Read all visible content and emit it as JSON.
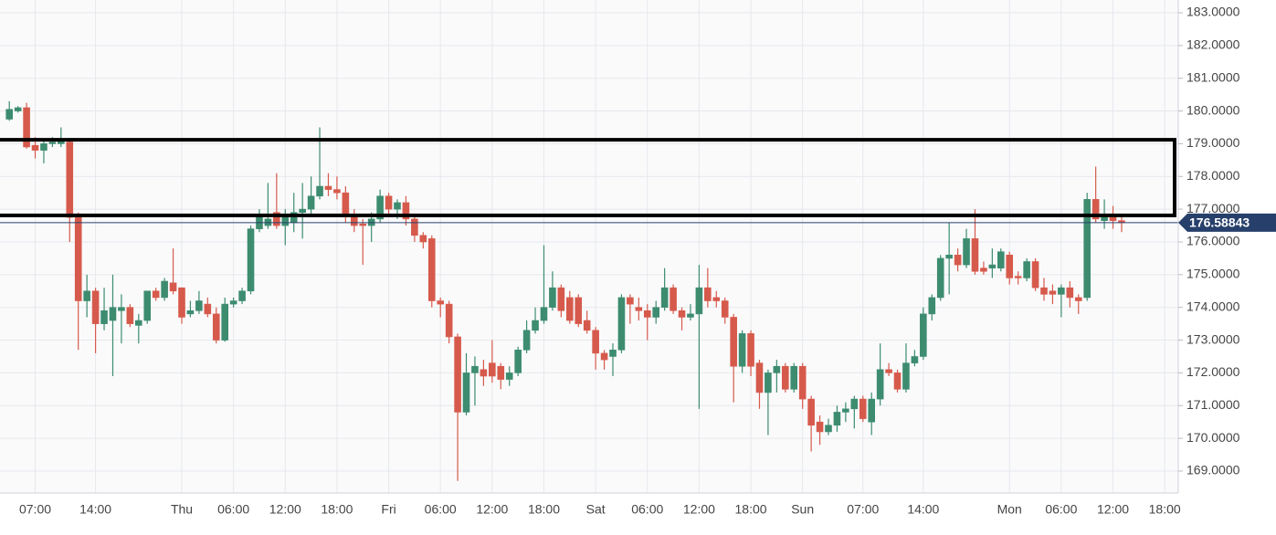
{
  "chart_data": {
    "type": "candlestick",
    "categories": [
      null,
      null,
      null,
      "07:00",
      null,
      null,
      null,
      null,
      null,
      null,
      "14:00",
      null,
      null,
      null,
      null,
      null,
      null,
      null,
      null,
      null,
      "Thu",
      null,
      null,
      null,
      null,
      null,
      "06:00",
      null,
      null,
      null,
      null,
      null,
      "12:00",
      null,
      null,
      null,
      null,
      null,
      "18:00",
      null,
      null,
      null,
      null,
      null,
      "Fri",
      null,
      null,
      null,
      null,
      null,
      "06:00",
      null,
      null,
      null,
      null,
      null,
      "12:00",
      null,
      null,
      null,
      null,
      null,
      "18:00",
      null,
      null,
      null,
      null,
      null,
      "Sat",
      null,
      null,
      null,
      null,
      null,
      "06:00",
      null,
      null,
      null,
      null,
      null,
      "12:00",
      null,
      null,
      null,
      null,
      null,
      "18:00",
      null,
      null,
      null,
      null,
      null,
      "Sun",
      null,
      null,
      null,
      null,
      null,
      null,
      "07:00",
      null,
      null,
      null,
      null,
      null,
      null,
      "14:00",
      null,
      null,
      null,
      null,
      null,
      null,
      null,
      null,
      null,
      "Mon",
      null,
      null,
      null,
      null,
      null,
      "06:00",
      null,
      null,
      null,
      null,
      null,
      "12:00",
      null,
      null,
      null,
      null,
      null,
      "18:00"
    ],
    "open": [
      179.75,
      180.0,
      180.1,
      178.95,
      178.8,
      179.0,
      179.0,
      179.05,
      176.75,
      174.2,
      174.5,
      173.5,
      173.6,
      173.9,
      174.0,
      173.45,
      173.6,
      174.5,
      174.3,
      174.75,
      174.6,
      173.8,
      173.9,
      174.1,
      173.8,
      173.0,
      174.1,
      174.2,
      174.5,
      176.4,
      176.5,
      176.9,
      176.5,
      176.6,
      176.9,
      177.0,
      177.4,
      177.7,
      177.6,
      177.5,
      176.8,
      176.55,
      176.5,
      176.7,
      177.4,
      177.0,
      177.2,
      176.7,
      176.2,
      176.1,
      174.2,
      174.1,
      173.1,
      170.8,
      172.0,
      172.1,
      172.3,
      172.2,
      171.8,
      172.0,
      172.7,
      173.3,
      173.6,
      174.0,
      174.6,
      174.3,
      174.3,
      173.6,
      173.3,
      172.6,
      172.5,
      172.7,
      174.3,
      174.0,
      173.9,
      173.7,
      174.0,
      174.6,
      173.9,
      173.7,
      173.8,
      174.6,
      174.3,
      174.2,
      173.7,
      172.2,
      173.2,
      172.3,
      171.4,
      172.0,
      172.2,
      171.5,
      172.2,
      171.2,
      170.5,
      170.2,
      170.4,
      170.8,
      170.9,
      171.2,
      170.5,
      171.2,
      172.1,
      172.0,
      171.5,
      172.3,
      172.5,
      173.8,
      174.3,
      175.5,
      175.6,
      175.3,
      176.1,
      175.2,
      175.2,
      175.2,
      175.6,
      174.95,
      174.9,
      175.4,
      174.6,
      174.5,
      174.4,
      174.6,
      174.3,
      174.3,
      177.3,
      176.65,
      176.75,
      176.65,
      null,
      null,
      null,
      null,
      null
    ],
    "high": [
      180.3,
      180.15,
      180.25,
      179.2,
      179.1,
      179.2,
      179.5,
      179.15,
      176.9,
      175.0,
      174.6,
      174.6,
      175.0,
      174.4,
      174.1,
      173.8,
      174.5,
      174.6,
      174.9,
      175.8,
      174.6,
      174.2,
      174.5,
      174.3,
      174.0,
      174.3,
      174.3,
      174.6,
      176.5,
      177.0,
      177.8,
      178.1,
      177.0,
      177.5,
      177.8,
      178.0,
      179.5,
      178.1,
      178.0,
      177.7,
      177.0,
      176.7,
      176.9,
      177.6,
      177.5,
      177.3,
      177.4,
      176.8,
      176.3,
      176.2,
      174.3,
      174.2,
      173.2,
      172.6,
      172.5,
      172.4,
      173.0,
      172.3,
      172.2,
      172.8,
      173.6,
      174.0,
      175.9,
      175.1,
      174.7,
      174.5,
      174.4,
      173.9,
      173.4,
      172.7,
      172.9,
      174.4,
      174.4,
      174.3,
      174.1,
      174.2,
      175.2,
      174.7,
      174.0,
      174.1,
      175.3,
      175.2,
      174.5,
      174.3,
      173.8,
      173.3,
      173.3,
      172.4,
      172.1,
      172.4,
      172.3,
      172.3,
      172.3,
      171.3,
      170.7,
      170.6,
      171.0,
      171.1,
      171.3,
      171.3,
      171.4,
      172.9,
      172.3,
      172.1,
      172.9,
      172.7,
      174.0,
      174.4,
      175.6,
      176.6,
      175.8,
      176.4,
      177.0,
      175.4,
      175.8,
      175.8,
      175.7,
      175.1,
      175.5,
      175.5,
      174.9,
      174.7,
      174.7,
      174.8,
      174.4,
      177.5,
      178.3,
      177.3,
      177.1,
      176.8,
      null,
      null,
      null,
      null,
      null
    ],
    "low": [
      179.7,
      179.95,
      178.85,
      178.55,
      178.4,
      178.9,
      178.9,
      176.0,
      172.7,
      173.7,
      172.6,
      173.3,
      171.9,
      172.9,
      173.4,
      172.9,
      173.5,
      174.2,
      174.2,
      174.4,
      173.5,
      173.7,
      173.8,
      173.7,
      172.9,
      172.95,
      174.0,
      174.1,
      174.4,
      176.3,
      176.4,
      176.4,
      175.9,
      176.3,
      176.1,
      176.8,
      177.3,
      177.4,
      177.3,
      176.6,
      176.3,
      175.3,
      176.0,
      176.6,
      176.8,
      176.7,
      176.5,
      176.0,
      175.8,
      174.0,
      173.7,
      172.9,
      168.7,
      170.7,
      171.0,
      171.6,
      171.7,
      171.5,
      171.6,
      171.9,
      172.6,
      173.2,
      173.5,
      173.9,
      173.7,
      173.5,
      173.4,
      173.2,
      172.1,
      172.1,
      171.9,
      172.6,
      173.5,
      173.6,
      173.0,
      173.5,
      173.9,
      173.8,
      173.3,
      173.6,
      170.9,
      174.0,
      174.0,
      173.5,
      171.1,
      172.0,
      171.9,
      170.9,
      170.1,
      171.4,
      171.4,
      171.4,
      170.9,
      169.6,
      169.8,
      170.1,
      170.2,
      170.5,
      170.3,
      170.5,
      170.1,
      171.0,
      171.9,
      171.4,
      171.4,
      172.2,
      172.4,
      173.6,
      174.2,
      174.4,
      175.1,
      175.2,
      175.0,
      175.0,
      174.9,
      175.1,
      174.7,
      174.7,
      174.8,
      174.5,
      174.2,
      174.1,
      173.7,
      174.0,
      173.8,
      174.2,
      176.6,
      176.4,
      176.4,
      176.3,
      null,
      null,
      null,
      null,
      null
    ],
    "close": [
      180.05,
      180.1,
      178.9,
      178.8,
      179.0,
      179.05,
      179.1,
      176.75,
      174.2,
      174.5,
      173.5,
      173.9,
      174.0,
      174.0,
      173.5,
      173.6,
      174.5,
      174.3,
      174.8,
      174.5,
      173.7,
      173.9,
      174.2,
      173.8,
      173.0,
      174.1,
      174.2,
      174.5,
      176.4,
      176.8,
      176.7,
      176.5,
      176.8,
      176.9,
      177.0,
      177.4,
      177.7,
      177.6,
      177.5,
      176.8,
      176.5,
      176.5,
      176.7,
      177.4,
      177.0,
      177.2,
      176.7,
      176.2,
      176.0,
      174.2,
      174.1,
      173.1,
      170.8,
      172.0,
      172.2,
      171.9,
      171.9,
      171.8,
      172.0,
      172.7,
      173.3,
      173.6,
      174.0,
      174.6,
      173.9,
      173.6,
      173.5,
      173.3,
      172.6,
      172.4,
      172.7,
      174.3,
      174.1,
      173.9,
      173.7,
      174.0,
      174.6,
      173.9,
      173.7,
      173.8,
      174.6,
      174.2,
      174.2,
      173.7,
      172.2,
      173.2,
      172.2,
      171.4,
      172.0,
      172.2,
      171.5,
      172.2,
      171.2,
      170.4,
      170.2,
      170.4,
      170.8,
      170.9,
      171.2,
      170.6,
      171.2,
      172.1,
      172.0,
      171.5,
      172.3,
      172.5,
      173.8,
      174.3,
      175.5,
      175.6,
      175.3,
      176.1,
      175.1,
      175.1,
      175.3,
      175.7,
      174.9,
      174.9,
      175.4,
      174.6,
      174.4,
      174.4,
      174.6,
      174.3,
      174.2,
      177.3,
      176.7,
      176.75,
      176.65,
      176.59,
      null,
      null,
      null,
      null,
      null
    ],
    "up_color": "#3d8c70",
    "down_color": "#d65a4c",
    "last_price": 176.58843,
    "last_price_color": "#27406b",
    "zone": {
      "top": 179.12,
      "bottom": 176.81
    },
    "ylim": [
      168.33,
      183.39
    ],
    "yticks": [
      {
        "value": 169,
        "label": "169.0000"
      },
      {
        "value": 170,
        "label": "170.0000"
      },
      {
        "value": 171,
        "label": "171.0000"
      },
      {
        "value": 172,
        "label": "172.0000"
      },
      {
        "value": 173,
        "label": "173.0000"
      },
      {
        "value": 174,
        "label": "174.0000"
      },
      {
        "value": 175,
        "label": "175.0000"
      },
      {
        "value": 176,
        "label": "176.0000"
      },
      {
        "value": 177,
        "label": "177.0000"
      },
      {
        "value": 178,
        "label": "178.0000"
      },
      {
        "value": 179,
        "label": "179.0000"
      },
      {
        "value": 180,
        "label": "180.0000"
      },
      {
        "value": 181,
        "label": "181.0000"
      },
      {
        "value": 182,
        "label": "182.0000"
      },
      {
        "value": 183,
        "label": "183.0000"
      }
    ],
    "grid": true
  }
}
